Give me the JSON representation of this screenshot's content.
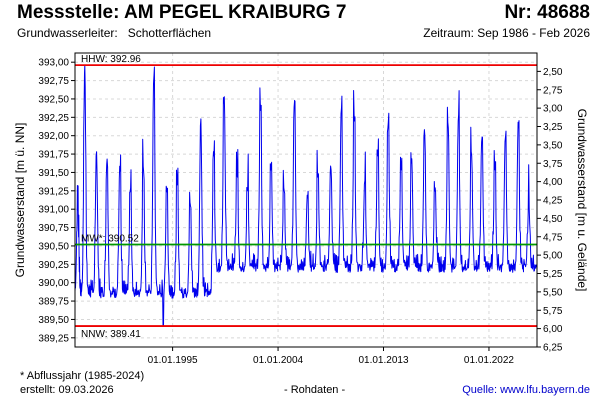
{
  "header": {
    "title": "Messstelle: AM PEGEL KRAIBURG 7",
    "number": "Nr: 48688",
    "aquifer_label": "Grundwasserleiter:",
    "aquifer_value": "Schotterflächen",
    "period": "Zeitraum: Sep 1986 - Feb 2026"
  },
  "footer": {
    "note": "* Abflussjahr (1985-2024)",
    "created": "erstellt:  09.03.2026",
    "data_type": "- Rohdaten -",
    "source": "Quelle: www.lfu.bayern.de"
  },
  "colors": {
    "series": "#0000ee",
    "hhw_nnw": "#ee0000",
    "mw": "#009900",
    "grid": "#d8d8d8"
  },
  "chart_data": {
    "type": "line",
    "title": "Messstelle: AM PEGEL KRAIBURG 7",
    "xlabel": "",
    "ylabel": "Grundwasserstand [m ü. NN]",
    "y2label": "Grundwasserstand [m u. Gelände]",
    "xlim": [
      1986.67,
      2026.1
    ],
    "ylim": [
      389.125,
      393.125
    ],
    "y2lim": [
      6.25,
      2.25
    ],
    "grid": true,
    "x_ticks": [
      {
        "year": 1995.0,
        "label": "01.01.1995"
      },
      {
        "year": 2004.0,
        "label": "01.01.2004"
      },
      {
        "year": 2013.0,
        "label": "01.01.2013"
      },
      {
        "year": 2022.0,
        "label": "01.01.2022"
      }
    ],
    "y_ticks": [
      "389,25",
      "389,50",
      "389,75",
      "390,00",
      "390,25",
      "390,50",
      "390,75",
      "391,00",
      "391,25",
      "391,50",
      "391,75",
      "392,00",
      "392,25",
      "392,50",
      "392,75",
      "393,00"
    ],
    "y_tick_values": [
      389.25,
      389.5,
      389.75,
      390.0,
      390.25,
      390.5,
      390.75,
      391.0,
      391.25,
      391.5,
      391.75,
      392.0,
      392.25,
      392.5,
      392.75,
      393.0
    ],
    "y2_ticks": [
      "2,50",
      "2,75",
      "3,00",
      "3,25",
      "3,50",
      "3,75",
      "4,00",
      "4,25",
      "4,50",
      "4,75",
      "5,00",
      "5,25",
      "5,50",
      "5,75",
      "6,00",
      "6,25"
    ],
    "y2_tick_values": [
      2.5,
      2.75,
      3.0,
      3.25,
      3.5,
      3.75,
      4.0,
      4.25,
      4.5,
      4.75,
      5.0,
      5.25,
      5.5,
      5.75,
      6.0,
      6.25
    ],
    "reference_lines": [
      {
        "name": "HHW",
        "label": "HHW: 392.96",
        "value": 392.96
      },
      {
        "name": "MW",
        "label": "MW*: 390.52",
        "value": 390.52
      },
      {
        "name": "NNW",
        "label": "NNW: 389.41",
        "value": 389.41
      }
    ],
    "series": [
      {
        "name": "Grundwasserstand",
        "annual_peaks": [
          {
            "year": 1986.9,
            "value": 391.0
          },
          {
            "year": 1987.5,
            "value": 392.96
          },
          {
            "year": 1988.5,
            "value": 391.8
          },
          {
            "year": 1989.4,
            "value": 391.7
          },
          {
            "year": 1990.5,
            "value": 391.6
          },
          {
            "year": 1991.4,
            "value": 391.3
          },
          {
            "year": 1992.5,
            "value": 391.6
          },
          {
            "year": 1993.4,
            "value": 392.85
          },
          {
            "year": 1994.5,
            "value": 391.3
          },
          {
            "year": 1995.4,
            "value": 391.4
          },
          {
            "year": 1996.5,
            "value": 391.1
          },
          {
            "year": 1997.4,
            "value": 392.25
          },
          {
            "year": 1998.5,
            "value": 391.8
          },
          {
            "year": 1999.4,
            "value": 392.55
          },
          {
            "year": 2000.5,
            "value": 391.5
          },
          {
            "year": 2001.4,
            "value": 391.3
          },
          {
            "year": 2002.5,
            "value": 392.45
          },
          {
            "year": 2003.4,
            "value": 391.6
          },
          {
            "year": 2004.5,
            "value": 391.3
          },
          {
            "year": 2005.4,
            "value": 392.5
          },
          {
            "year": 2006.5,
            "value": 391.2
          },
          {
            "year": 2007.4,
            "value": 391.5
          },
          {
            "year": 2008.5,
            "value": 391.6
          },
          {
            "year": 2009.4,
            "value": 392.4
          },
          {
            "year": 2010.5,
            "value": 392.3
          },
          {
            "year": 2011.4,
            "value": 391.4
          },
          {
            "year": 2012.5,
            "value": 391.8
          },
          {
            "year": 2013.4,
            "value": 392.2
          },
          {
            "year": 2014.5,
            "value": 391.6
          },
          {
            "year": 2015.4,
            "value": 391.7
          },
          {
            "year": 2016.5,
            "value": 392.1
          },
          {
            "year": 2017.4,
            "value": 391.3
          },
          {
            "year": 2018.5,
            "value": 392.2
          },
          {
            "year": 2019.4,
            "value": 392.3
          },
          {
            "year": 2020.5,
            "value": 391.8
          },
          {
            "year": 2021.4,
            "value": 392.0
          },
          {
            "year": 2022.5,
            "value": 391.6
          },
          {
            "year": 2023.4,
            "value": 392.0
          },
          {
            "year": 2024.5,
            "value": 392.2
          },
          {
            "year": 2025.4,
            "value": 391.1
          }
        ],
        "baseline_by_period": [
          {
            "from": 1986.67,
            "to": 1998.5,
            "value": 389.85
          },
          {
            "from": 1998.5,
            "to": 2026.1,
            "value": 390.2
          }
        ],
        "minimum": {
          "year": 1994.2,
          "value": 389.41
        }
      }
    ]
  }
}
